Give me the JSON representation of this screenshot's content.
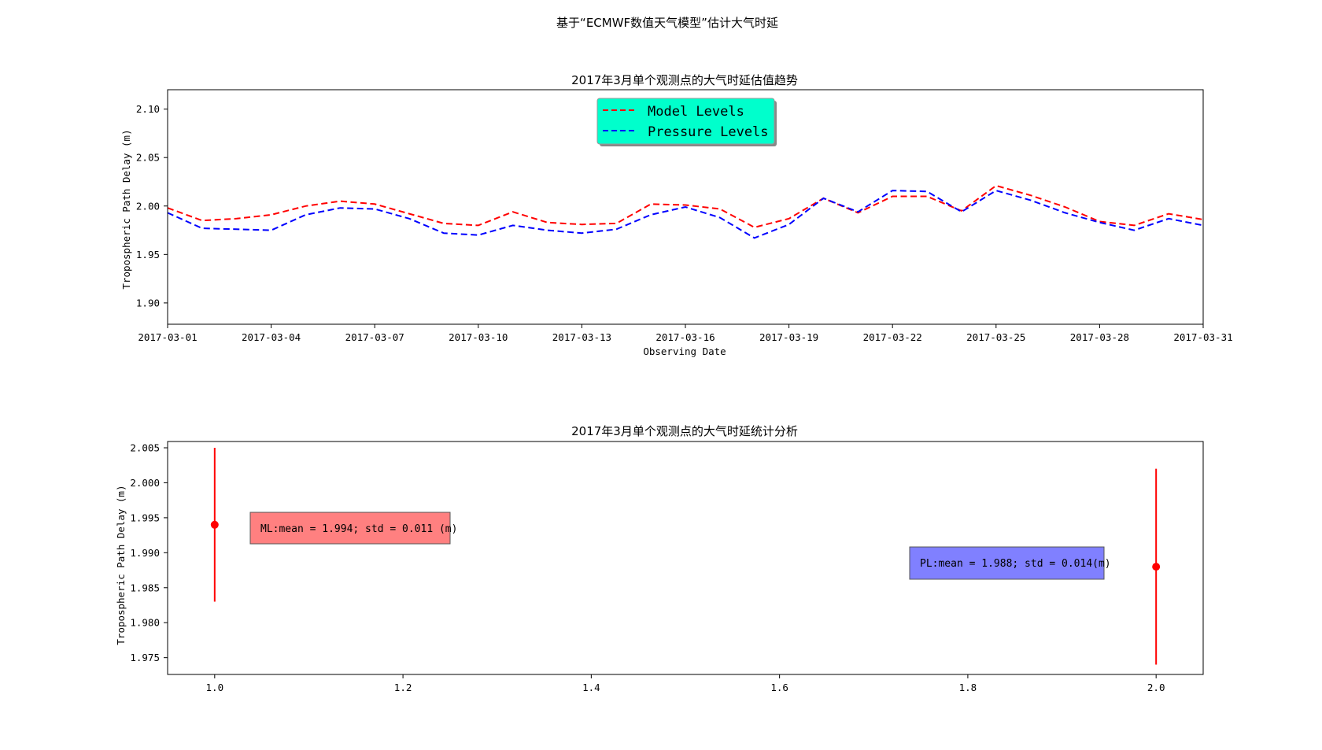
{
  "suptitle": "基于“ECMWF数值天气模型”估计大气时延",
  "colors": {
    "model_levels": "#ff0000",
    "pressure_levels": "#0000ff",
    "legend_bg": "#00ffcc",
    "errorbar": "#ff0000",
    "ml_box": "#ff8080",
    "pl_box": "#8080ff"
  },
  "chart_data": [
    {
      "type": "line",
      "title": "2017年3月单个观测点的大气时延估值趋势",
      "xlabel": "Observing Date",
      "ylabel": "Tropospheric Path Delay (m)",
      "xlim": [
        "2017-03-01",
        "2017-03-31"
      ],
      "ylim": [
        1.878,
        2.12
      ],
      "xticks": [
        "2017-03-01",
        "2017-03-04",
        "2017-03-07",
        "2017-03-10",
        "2017-03-13",
        "2017-03-16",
        "2017-03-19",
        "2017-03-22",
        "2017-03-25",
        "2017-03-28",
        "2017-03-31"
      ],
      "yticks": [
        "1.90",
        "1.95",
        "2.00",
        "2.05",
        "2.10"
      ],
      "legend_position": "upper center",
      "x": [
        "2017-03-01",
        "2017-03-02",
        "2017-03-03",
        "2017-03-04",
        "2017-03-05",
        "2017-03-06",
        "2017-03-07",
        "2017-03-08",
        "2017-03-09",
        "2017-03-10",
        "2017-03-11",
        "2017-03-12",
        "2017-03-13",
        "2017-03-14",
        "2017-03-15",
        "2017-03-16",
        "2017-03-17",
        "2017-03-18",
        "2017-03-19",
        "2017-03-20",
        "2017-03-21",
        "2017-03-22",
        "2017-03-23",
        "2017-03-24",
        "2017-03-25",
        "2017-03-26",
        "2017-03-27",
        "2017-03-28",
        "2017-03-29",
        "2017-03-30",
        "2017-03-31"
      ],
      "series": [
        {
          "name": "Model Levels",
          "style": "dashed",
          "values": [
            1.998,
            1.985,
            1.987,
            1.991,
            2.0,
            2.005,
            2.002,
            1.992,
            1.982,
            1.98,
            1.994,
            1.983,
            1.981,
            1.982,
            2.002,
            2.001,
            1.997,
            1.978,
            1.987,
            2.008,
            1.993,
            2.01,
            2.01,
            1.995,
            2.021,
            2.011,
            1.999,
            1.984,
            1.98,
            1.992,
            1.986
          ]
        },
        {
          "name": "Pressure Levels",
          "style": "dashed",
          "values": [
            1.993,
            1.977,
            1.976,
            1.975,
            1.991,
            1.998,
            1.997,
            1.987,
            1.972,
            1.97,
            1.98,
            1.975,
            1.972,
            1.976,
            1.991,
            1.999,
            1.988,
            1.967,
            1.981,
            2.008,
            1.994,
            2.016,
            2.015,
            1.994,
            2.016,
            2.006,
            1.993,
            1.983,
            1.975,
            1.987,
            1.98
          ]
        }
      ]
    },
    {
      "type": "errorbar",
      "title": "2017年3月单个观测点的大气时延统计分析",
      "xlabel": "",
      "ylabel": "Tropospheric Path Delay (m)",
      "xlim": [
        0.95,
        2.05
      ],
      "ylim": [
        1.9726,
        2.0059
      ],
      "xticks": [
        "1.0",
        "1.2",
        "1.4",
        "1.6",
        "1.8",
        "2.0"
      ],
      "yticks": [
        "1.975",
        "1.980",
        "1.985",
        "1.990",
        "1.995",
        "2.000",
        "2.005"
      ],
      "points": [
        {
          "x": 1.0,
          "mean": 1.994,
          "std": 0.011
        },
        {
          "x": 2.0,
          "mean": 1.988,
          "std": 0.014
        }
      ],
      "annotations": {
        "ml": "ML:mean = 1.994; std = 0.011 (m)",
        "pl": "PL:mean = 1.988; std = 0.014(m)"
      }
    }
  ]
}
